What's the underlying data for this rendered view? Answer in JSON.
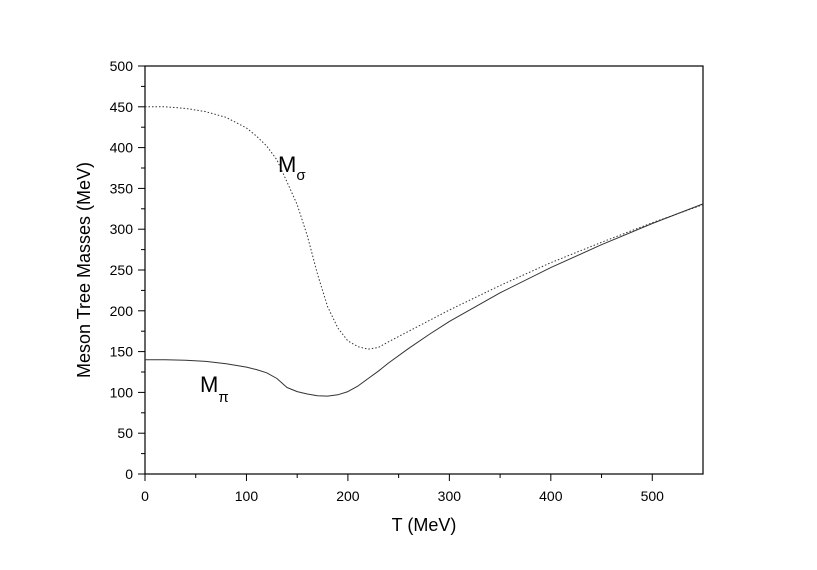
{
  "chart_data": {
    "type": "line",
    "xlabel": "T (MeV)",
    "ylabel": "Meson Tree Masses (MeV)",
    "xlim": [
      0,
      550
    ],
    "ylim": [
      0,
      500
    ],
    "x_ticks": [
      "0",
      "100",
      "200",
      "300",
      "400",
      "500"
    ],
    "y_ticks": [
      "0",
      "50",
      "100",
      "150",
      "200",
      "250",
      "300",
      "350",
      "400",
      "450",
      "500"
    ],
    "grid": false,
    "series": [
      {
        "label_main": "M",
        "label_sub": "σ",
        "style": "dotted",
        "color": "#333333",
        "x": [
          0,
          20,
          40,
          60,
          80,
          100,
          110,
          120,
          130,
          140,
          150,
          160,
          170,
          180,
          190,
          200,
          210,
          220,
          230,
          240,
          260,
          280,
          300,
          350,
          400,
          450,
          500,
          550
        ],
        "y": [
          450,
          450,
          448,
          444,
          437,
          424,
          414,
          402,
          385,
          358,
          330,
          292,
          245,
          205,
          179,
          163,
          156,
          153,
          155,
          162,
          175,
          188,
          201,
          231,
          259,
          284,
          308,
          330
        ]
      },
      {
        "label_main": "M",
        "label_sub": "π",
        "style": "solid",
        "color": "#333333",
        "x": [
          0,
          20,
          40,
          60,
          80,
          100,
          110,
          120,
          130,
          140,
          150,
          160,
          170,
          180,
          190,
          200,
          210,
          220,
          230,
          240,
          260,
          280,
          300,
          350,
          400,
          450,
          500,
          550
        ],
        "y": [
          140,
          140,
          139.5,
          138,
          135,
          131,
          128,
          124,
          117,
          106,
          101,
          98,
          96,
          95.5,
          97,
          101,
          108,
          117,
          126,
          136,
          154,
          171,
          187,
          222,
          253,
          281,
          307,
          331
        ]
      }
    ]
  }
}
